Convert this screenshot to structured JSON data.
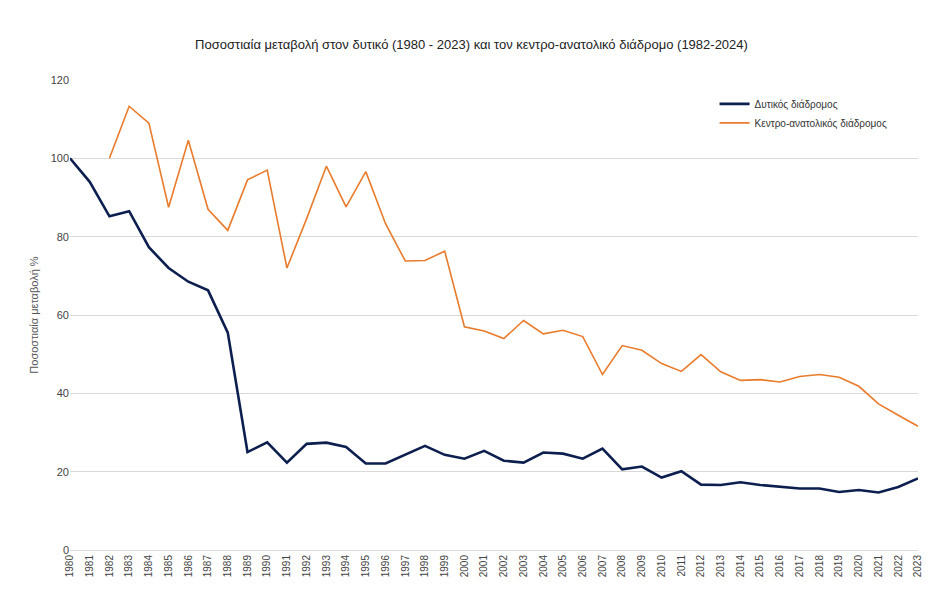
{
  "chart_data": {
    "type": "line",
    "title": "Ποσοστιαία μεταβολή στον δυτικό (1980 - 2023) και τον κεντρο-ανατολικό διάδρομο (1982-2024)",
    "y_label": "Ποσοστιαία μεταβολή %",
    "categories": [
      "1980",
      "1981",
      "1982",
      "1983",
      "1984",
      "1985",
      "1986",
      "1987",
      "1988",
      "1989",
      "1990",
      "1991",
      "1992",
      "1993",
      "1994",
      "1995",
      "1996",
      "1997",
      "1998",
      "1999",
      "2000",
      "2001",
      "2002",
      "2003",
      "2004",
      "2005",
      "2006",
      "2007",
      "2008",
      "2009",
      "2010",
      "2011",
      "2012",
      "2013",
      "2014",
      "2015",
      "2016",
      "2017",
      "2018",
      "2019",
      "2020",
      "2021",
      "2022",
      "2023"
    ],
    "series": [
      {
        "name": "Δυτικός διάδρομος",
        "color": "#0d1f4f",
        "values": [
          100,
          94,
          85.2,
          86.5,
          77.3,
          72,
          68.5,
          66.3,
          55.5,
          25,
          27.5,
          22.3,
          27.1,
          27.4,
          26.3,
          22.1,
          22.1,
          24.4,
          26.6,
          24.3,
          23.3,
          25.3,
          22.8,
          22.3,
          24.9,
          24.6,
          23.3,
          25.9,
          20.6,
          21.3,
          18.5,
          20.1,
          16.7,
          16.6,
          17.3,
          16.6,
          16.1,
          15.7,
          15.7,
          14.8,
          15.3,
          14.7,
          16.1,
          18.3
        ]
      },
      {
        "name": "Κεντρο-ανατολικός διάδρομος",
        "color": "#e97b2c",
        "values": [
          null,
          null,
          100,
          113.3,
          109,
          87.5,
          104.6,
          87,
          81.6,
          94.5,
          97,
          72,
          84.6,
          98,
          87.6,
          96.6,
          83.3,
          73.8,
          73.9,
          76.3,
          57,
          55.9,
          54,
          58.6,
          55.2,
          56.1,
          54.5,
          44.8,
          52.2,
          51,
          47.6,
          45.6,
          49.9,
          45.5,
          43.3,
          43.5,
          42.9,
          44.3,
          44.8,
          44.1,
          41.8,
          37.3,
          34.4,
          31.6
        ]
      }
    ],
    "ylim": [
      0,
      120
    ],
    "yticks": [
      0,
      20,
      40,
      60,
      80,
      100,
      120
    ],
    "grid": true,
    "legend": "upper right"
  }
}
